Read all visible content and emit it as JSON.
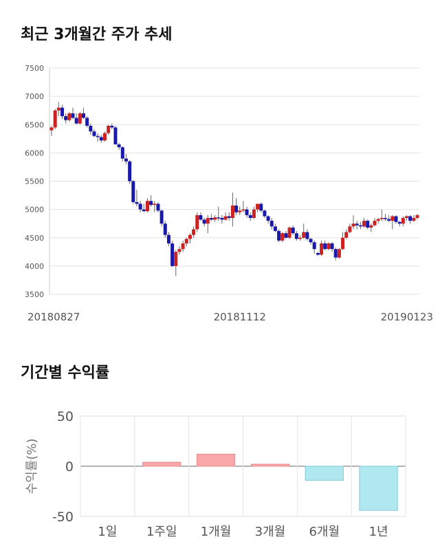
{
  "section1_title": "최근 3개월간 주가 추세",
  "section2_title": "기간별 수익률",
  "chart_data": [
    {
      "type": "candlestick",
      "title": "최근 3개월간 주가 추세",
      "ylim": [
        3500,
        7500
      ],
      "yticks": [
        3500,
        4000,
        4500,
        5000,
        5500,
        6000,
        6500,
        7000,
        7500
      ],
      "xtick_labels": [
        "20180827",
        "20181112",
        "20190123"
      ],
      "xtick_indices": [
        0,
        53,
        103
      ],
      "grid": true,
      "up_color": "#cc2222",
      "down_color": "#1a1aaa",
      "candles": [
        [
          6400,
          6480,
          6300,
          6450
        ],
        [
          6450,
          6780,
          6420,
          6750
        ],
        [
          6750,
          6900,
          6650,
          6800
        ],
        [
          6800,
          6850,
          6600,
          6650
        ],
        [
          6650,
          6700,
          6520,
          6580
        ],
        [
          6580,
          6720,
          6550,
          6700
        ],
        [
          6700,
          6800,
          6600,
          6620
        ],
        [
          6620,
          6700,
          6500,
          6520
        ],
        [
          6520,
          6720,
          6500,
          6700
        ],
        [
          6700,
          6800,
          6600,
          6620
        ],
        [
          6620,
          6650,
          6450,
          6480
        ],
        [
          6480,
          6520,
          6320,
          6380
        ],
        [
          6380,
          6420,
          6280,
          6300
        ],
        [
          6300,
          6350,
          6200,
          6280
        ],
        [
          6280,
          6320,
          6180,
          6220
        ],
        [
          6220,
          6380,
          6200,
          6350
        ],
        [
          6350,
          6500,
          6320,
          6480
        ],
        [
          6480,
          6520,
          6420,
          6450
        ],
        [
          6450,
          6480,
          6150,
          6150
        ],
        [
          6150,
          6180,
          6050,
          6100
        ],
        [
          6100,
          6120,
          5850,
          5900
        ],
        [
          5900,
          5980,
          5800,
          5850
        ],
        [
          5850,
          5870,
          5450,
          5500
        ],
        [
          5500,
          5520,
          5100,
          5130
        ],
        [
          5130,
          5350,
          5050,
          5100
        ],
        [
          5100,
          5150,
          4950,
          5000
        ],
        [
          5000,
          5100,
          4950,
          4970
        ],
        [
          4970,
          5200,
          4950,
          5150
        ],
        [
          5150,
          5250,
          5050,
          5080
        ],
        [
          5080,
          5150,
          4950,
          5100
        ],
        [
          5100,
          5130,
          4950,
          4980
        ],
        [
          4980,
          5000,
          4700,
          4750
        ],
        [
          4750,
          4800,
          4500,
          4550
        ],
        [
          4550,
          4600,
          4350,
          4400
        ],
        [
          4400,
          4450,
          3980,
          4000
        ],
        [
          4000,
          4280,
          3820,
          4250
        ],
        [
          4250,
          4350,
          4200,
          4300
        ],
        [
          4300,
          4450,
          4250,
          4400
        ],
        [
          4400,
          4500,
          4350,
          4480
        ],
        [
          4480,
          4580,
          4400,
          4550
        ],
        [
          4550,
          4700,
          4500,
          4650
        ],
        [
          4650,
          4950,
          4600,
          4900
        ],
        [
          4900,
          4950,
          4800,
          4820
        ],
        [
          4820,
          4850,
          4700,
          4750
        ],
        [
          4750,
          4900,
          4580,
          4850
        ],
        [
          4850,
          4920,
          4800,
          4820
        ],
        [
          4820,
          4900,
          4780,
          4860
        ],
        [
          4860,
          5050,
          4800,
          4850
        ],
        [
          4850,
          4900,
          4750,
          4820
        ],
        [
          4820,
          4950,
          4800,
          4880
        ],
        [
          4880,
          4950,
          4800,
          4850
        ],
        [
          4850,
          5300,
          4700,
          5070
        ],
        [
          5070,
          5200,
          4900,
          4950
        ],
        [
          4950,
          5050,
          4900,
          4980
        ],
        [
          4980,
          5150,
          4950,
          5000
        ],
        [
          5000,
          5050,
          4850,
          4900
        ],
        [
          4900,
          4950,
          4800,
          4850
        ],
        [
          4850,
          5050,
          4830,
          5000
        ],
        [
          5000,
          5100,
          4950,
          5100
        ],
        [
          5100,
          5120,
          4950,
          4980
        ],
        [
          4980,
          5000,
          4850,
          4880
        ],
        [
          4880,
          4900,
          4750,
          4800
        ],
        [
          4800,
          4850,
          4650,
          4700
        ],
        [
          4700,
          4750,
          4600,
          4620
        ],
        [
          4620,
          4650,
          4420,
          4450
        ],
        [
          4450,
          4600,
          4420,
          4580
        ],
        [
          4580,
          4620,
          4480,
          4500
        ],
        [
          4500,
          4700,
          4480,
          4680
        ],
        [
          4680,
          4720,
          4550,
          4580
        ],
        [
          4580,
          4620,
          4450,
          4480
        ],
        [
          4480,
          4550,
          4450,
          4500
        ],
        [
          4500,
          4750,
          4480,
          4600
        ],
        [
          4600,
          4650,
          4450,
          4480
        ],
        [
          4480,
          4500,
          4380,
          4420
        ],
        [
          4420,
          4450,
          4220,
          4300
        ],
        [
          4230,
          4250,
          4180,
          4200
        ],
        [
          4200,
          4450,
          4180,
          4400
        ],
        [
          4400,
          4450,
          4280,
          4300
        ],
        [
          4300,
          4420,
          4280,
          4400
        ],
        [
          4400,
          4430,
          4250,
          4300
        ],
        [
          4300,
          4330,
          4100,
          4150
        ],
        [
          4150,
          4320,
          4130,
          4300
        ],
        [
          4300,
          4600,
          4280,
          4500
        ],
        [
          4500,
          4650,
          4480,
          4600
        ],
        [
          4600,
          4750,
          4580,
          4700
        ],
        [
          4700,
          4900,
          4650,
          4750
        ],
        [
          4750,
          4800,
          4650,
          4720
        ],
        [
          4720,
          4780,
          4650,
          4700
        ],
        [
          4700,
          4850,
          4680,
          4800
        ],
        [
          4800,
          4820,
          4650,
          4680
        ],
        [
          4680,
          4750,
          4600,
          4720
        ],
        [
          4720,
          4850,
          4700,
          4800
        ],
        [
          4800,
          4850,
          4750,
          4830
        ],
        [
          4830,
          5000,
          4800,
          4850
        ],
        [
          4850,
          4920,
          4800,
          4830
        ],
        [
          4830,
          4900,
          4780,
          4800
        ],
        [
          4800,
          4900,
          4650,
          4880
        ],
        [
          4880,
          4900,
          4750,
          4780
        ],
        [
          4780,
          4800,
          4700,
          4750
        ],
        [
          4750,
          4880,
          4700,
          4850
        ],
        [
          4850,
          4900,
          4800,
          4880
        ],
        [
          4880,
          4900,
          4750,
          4800
        ],
        [
          4800,
          4900,
          4780,
          4850
        ],
        [
          4850,
          4920,
          4820,
          4900
        ]
      ]
    },
    {
      "type": "bar",
      "title": "기간별 수익률",
      "ylabel": "수익률(%)",
      "ylim": [
        -50,
        50
      ],
      "yticks": [
        -50,
        0,
        50
      ],
      "grid": true,
      "categories": [
        "1일",
        "1주일",
        "1개월",
        "3개월",
        "6개월",
        "1년"
      ],
      "values": [
        0,
        4,
        12,
        2,
        -14,
        -44
      ],
      "positive_color": "#f8a8a8",
      "negative_color": "#b0e8f0"
    }
  ]
}
